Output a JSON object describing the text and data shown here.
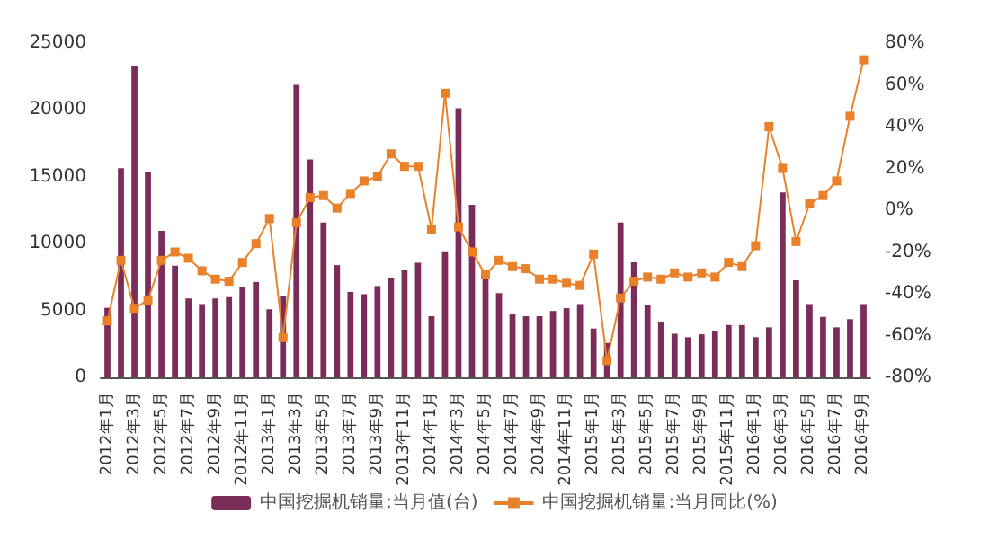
{
  "chart_data": {
    "type": "bar",
    "categories": [
      "2012年1月",
      null,
      "2012年3月",
      null,
      "2012年5月",
      null,
      "2012年7月",
      null,
      "2012年9月",
      null,
      "2012年11月",
      null,
      "2013年1月",
      null,
      "2013年3月",
      null,
      "2013年5月",
      null,
      "2013年7月",
      null,
      "2013年9月",
      null,
      "2013年11月",
      null,
      "2014年1月",
      null,
      "2014年3月",
      null,
      "2014年5月",
      null,
      "2014年7月",
      null,
      "2014年9月",
      null,
      "2014年11月",
      null,
      "2015年1月",
      null,
      "2015年3月",
      null,
      "2015年5月",
      null,
      "2015年7月",
      null,
      "2015年9月",
      null,
      "2015年11月",
      null,
      "2016年1月",
      null,
      "2016年3月",
      null,
      "2016年5月",
      null,
      "2016年7月",
      null,
      "2016年9月"
    ],
    "series": [
      {
        "name": "中国挖掘机销量:当月值(台)",
        "color": "#7b2d5a",
        "values": [
          5200,
          15650,
          23260,
          15350,
          10960,
          8350,
          5900,
          5480,
          5900,
          6000,
          6740,
          7130,
          5090,
          6090,
          21870,
          16300,
          11570,
          8390,
          6390,
          6220,
          6830,
          7430,
          8040,
          8570,
          4570,
          9430,
          20130,
          12910,
          7520,
          6300,
          4700,
          4570,
          4570,
          4960,
          5170,
          5480,
          3650,
          2570,
          11570,
          8610,
          5390,
          4170,
          3260,
          3000,
          3220,
          3430,
          3910,
          3910,
          3000,
          3740,
          13830,
          7260,
          5480,
          4520,
          3740,
          4350,
          5480
        ]
      },
      {
        "name": "中国挖掘机销量:当月同比(%)",
        "type": "line",
        "axis": "y2",
        "color": "#e8812a",
        "values": [
          -53,
          -24,
          -47,
          -43,
          -24,
          -20,
          -23,
          -29,
          -33,
          -34,
          -25,
          -16,
          -4,
          -61,
          -6,
          6,
          7,
          1,
          8,
          14,
          16,
          27,
          21,
          21,
          -9,
          56,
          -8,
          -20,
          -31,
          -24,
          -27,
          -28,
          -33,
          -33,
          -35,
          -36,
          -21,
          -72,
          -42,
          -34,
          -32,
          -33,
          -30,
          -32,
          -30,
          -32,
          -25,
          -27,
          -17,
          40,
          20,
          -15,
          3,
          7,
          14,
          45,
          72
        ]
      }
    ],
    "ylim": [
      0,
      25000
    ],
    "yticks": [
      0,
      5000,
      10000,
      15000,
      20000,
      25000
    ],
    "y2lim": [
      -80,
      80
    ],
    "y2ticks": [
      {
        "value": -80,
        "label": "-80%"
      },
      {
        "value": -60,
        "label": "-60%"
      },
      {
        "value": -40,
        "label": "-40%"
      },
      {
        "value": -20,
        "label": "-20%"
      },
      {
        "value": 0,
        "label": "0%"
      },
      {
        "value": 20,
        "label": "20%"
      },
      {
        "value": 40,
        "label": "40%"
      },
      {
        "value": 60,
        "label": "60%"
      },
      {
        "value": 80,
        "label": "80%"
      }
    ],
    "grid": false,
    "legend": "bottom",
    "marker": "square",
    "line_style": "solid"
  }
}
